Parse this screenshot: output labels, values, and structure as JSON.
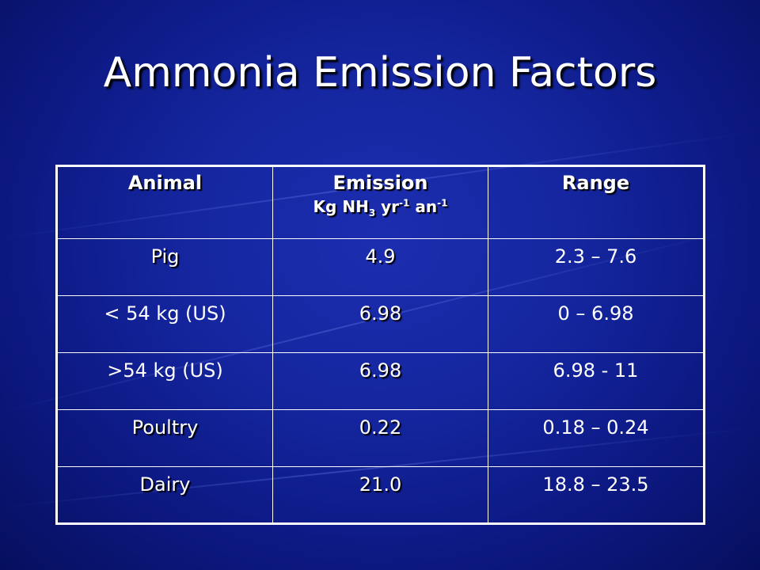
{
  "slide": {
    "title": "Ammonia Emission Factors"
  },
  "table": {
    "headers": {
      "animal": "Animal",
      "emission": "Emission",
      "emission_unit": {
        "kg_nh": "Kg NH",
        "sub_3": "3",
        "yr": " yr",
        "sup_yr": "-1",
        "an": " an",
        "sup_an": "-1"
      },
      "range": "Range"
    },
    "rows": [
      {
        "animal": "Pig",
        "emission": "4.9",
        "range": "2.3 – 7.6"
      },
      {
        "animal": "< 54 kg (US)",
        "emission": "6.98",
        "range": "0 – 6.98"
      },
      {
        "animal": ">54 kg (US)",
        "emission": "6.98",
        "range": "6.98 - 11"
      },
      {
        "animal": "Poultry",
        "emission": "0.22",
        "range": "0.18 – 0.24"
      },
      {
        "animal": "Dairy",
        "emission": "21.0",
        "range": "18.8 – 23.5"
      }
    ]
  },
  "colors": {
    "background": "#1526a0",
    "text": "#ffffff"
  }
}
